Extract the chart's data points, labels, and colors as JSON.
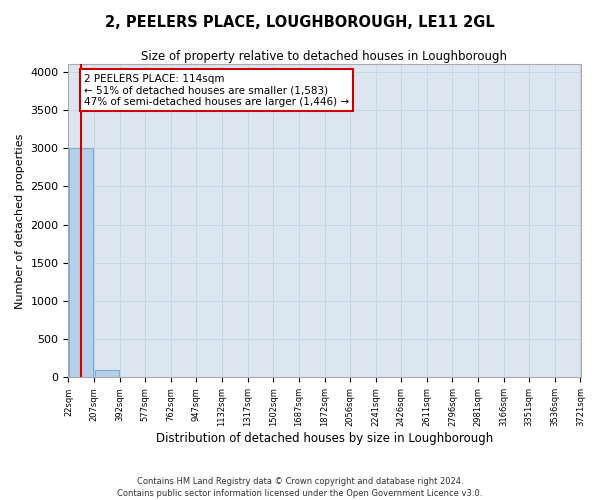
{
  "title": "2, PEELERS PLACE, LOUGHBOROUGH, LE11 2GL",
  "subtitle": "Size of property relative to detached houses in Loughborough",
  "xlabel": "Distribution of detached houses by size in Loughborough",
  "ylabel": "Number of detached properties",
  "footer_line1": "Contains HM Land Registry data © Crown copyright and database right 2024.",
  "footer_line2": "Contains public sector information licensed under the Open Government Licence v3.0.",
  "bin_edges": [
    22,
    207,
    392,
    577,
    762,
    947,
    1132,
    1317,
    1502,
    1687,
    1872,
    2056,
    2241,
    2426,
    2611,
    2796,
    2981,
    3166,
    3351,
    3536,
    3721
  ],
  "bar_heights": [
    3000,
    100,
    0,
    0,
    0,
    0,
    0,
    0,
    0,
    0,
    0,
    0,
    0,
    0,
    0,
    0,
    0,
    0,
    0,
    0
  ],
  "bar_color": "#b8cfe8",
  "bar_edge_color": "#7aadd6",
  "property_size": 114,
  "red_line_color": "#cc0000",
  "annotation_line1": "2 PEELERS PLACE: 114sqm",
  "annotation_line2": "← 51% of detached houses are smaller (1,583)",
  "annotation_line3": "47% of semi-detached houses are larger (1,446) →",
  "annotation_box_color": "#ffffff",
  "annotation_box_edge": "#cc0000",
  "ylim": [
    0,
    4100
  ],
  "yticks": [
    0,
    500,
    1000,
    1500,
    2000,
    2500,
    3000,
    3500,
    4000
  ],
  "grid_color": "#c8d4e8",
  "bg_color": "#dce6f0",
  "fig_bg_color": "#ffffff"
}
